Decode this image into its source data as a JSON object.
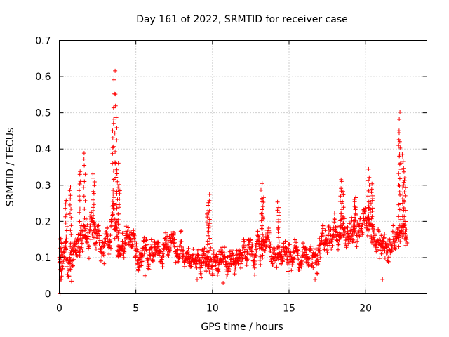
{
  "chart_data": {
    "type": "scatter",
    "title": "Day 161 of 2022, SRMTID for receiver case",
    "xlabel": "GPS time / hours",
    "ylabel": "SRMTID / TECUs",
    "xlim": [
      0,
      24
    ],
    "ylim": [
      0,
      0.7
    ],
    "x_ticks": [
      0,
      5,
      10,
      15,
      20
    ],
    "x_tick_labels": [
      "0",
      "5",
      "10",
      "15",
      "20"
    ],
    "y_ticks": [
      0,
      0.1,
      0.2,
      0.3,
      0.4,
      0.5,
      0.6,
      0.7
    ],
    "y_tick_labels": [
      "0",
      "0.1",
      "0.2",
      "0.3",
      "0.4",
      "0.5",
      "0.6",
      "0.7"
    ],
    "grid": true,
    "marker": "plus",
    "series_color": "#ff0000",
    "data_span_hours": [
      0,
      22.7
    ],
    "series": [
      {
        "name": "SRMTID",
        "profile": [
          {
            "x": 0.0,
            "y": 0.1,
            "spread": 0.05
          },
          {
            "x": 0.5,
            "y": 0.1,
            "spread": 0.06
          },
          {
            "x": 1.0,
            "y": 0.13,
            "spread": 0.07
          },
          {
            "x": 1.5,
            "y": 0.17,
            "spread": 0.08
          },
          {
            "x": 2.0,
            "y": 0.18,
            "spread": 0.08
          },
          {
            "x": 2.5,
            "y": 0.14,
            "spread": 0.06
          },
          {
            "x": 3.0,
            "y": 0.12,
            "spread": 0.05
          },
          {
            "x": 3.5,
            "y": 0.22,
            "spread": 0.07
          },
          {
            "x": 4.0,
            "y": 0.13,
            "spread": 0.05
          },
          {
            "x": 5.0,
            "y": 0.13,
            "spread": 0.05
          },
          {
            "x": 6.0,
            "y": 0.11,
            "spread": 0.05
          },
          {
            "x": 7.0,
            "y": 0.14,
            "spread": 0.05
          },
          {
            "x": 7.5,
            "y": 0.14,
            "spread": 0.05
          },
          {
            "x": 8.5,
            "y": 0.09,
            "spread": 0.04
          },
          {
            "x": 9.5,
            "y": 0.1,
            "spread": 0.05
          },
          {
            "x": 10.5,
            "y": 0.09,
            "spread": 0.05
          },
          {
            "x": 11.5,
            "y": 0.1,
            "spread": 0.05
          },
          {
            "x": 12.5,
            "y": 0.11,
            "spread": 0.05
          },
          {
            "x": 13.5,
            "y": 0.13,
            "spread": 0.05
          },
          {
            "x": 14.5,
            "y": 0.11,
            "spread": 0.05
          },
          {
            "x": 15.5,
            "y": 0.11,
            "spread": 0.05
          },
          {
            "x": 16.5,
            "y": 0.1,
            "spread": 0.05
          },
          {
            "x": 17.5,
            "y": 0.15,
            "spread": 0.05
          },
          {
            "x": 18.5,
            "y": 0.16,
            "spread": 0.06
          },
          {
            "x": 19.5,
            "y": 0.18,
            "spread": 0.06
          },
          {
            "x": 20.5,
            "y": 0.19,
            "spread": 0.07
          },
          {
            "x": 21.0,
            "y": 0.14,
            "spread": 0.06
          },
          {
            "x": 21.5,
            "y": 0.11,
            "spread": 0.05
          },
          {
            "x": 22.0,
            "y": 0.16,
            "spread": 0.06
          },
          {
            "x": 22.7,
            "y": 0.17,
            "spread": 0.05
          }
        ],
        "peaks": [
          {
            "x": 0.1,
            "y": 0.155
          },
          {
            "x": 0.45,
            "y": 0.26
          },
          {
            "x": 0.75,
            "y": 0.3
          },
          {
            "x": 1.35,
            "y": 0.34
          },
          {
            "x": 1.65,
            "y": 0.385
          },
          {
            "x": 2.25,
            "y": 0.33
          },
          {
            "x": 3.5,
            "y": 0.47
          },
          {
            "x": 3.6,
            "y": 0.62
          },
          {
            "x": 3.7,
            "y": 0.55
          },
          {
            "x": 3.8,
            "y": 0.36
          },
          {
            "x": 3.9,
            "y": 0.3
          },
          {
            "x": 9.7,
            "y": 0.24
          },
          {
            "x": 9.8,
            "y": 0.27
          },
          {
            "x": 13.2,
            "y": 0.3
          },
          {
            "x": 13.3,
            "y": 0.27
          },
          {
            "x": 14.3,
            "y": 0.25
          },
          {
            "x": 18.4,
            "y": 0.32
          },
          {
            "x": 18.5,
            "y": 0.28
          },
          {
            "x": 19.3,
            "y": 0.27
          },
          {
            "x": 20.2,
            "y": 0.34
          },
          {
            "x": 20.4,
            "y": 0.3
          },
          {
            "x": 22.2,
            "y": 0.5
          },
          {
            "x": 22.25,
            "y": 0.44
          },
          {
            "x": 22.45,
            "y": 0.39
          },
          {
            "x": 22.55,
            "y": 0.32
          }
        ],
        "minima": [
          {
            "x": 0.05,
            "y": 0.0
          },
          {
            "x": 0.8,
            "y": 0.035
          },
          {
            "x": 5.6,
            "y": 0.05
          },
          {
            "x": 9.0,
            "y": 0.04
          },
          {
            "x": 10.7,
            "y": 0.03
          },
          {
            "x": 16.7,
            "y": 0.04
          },
          {
            "x": 21.1,
            "y": 0.04
          }
        ]
      }
    ]
  }
}
